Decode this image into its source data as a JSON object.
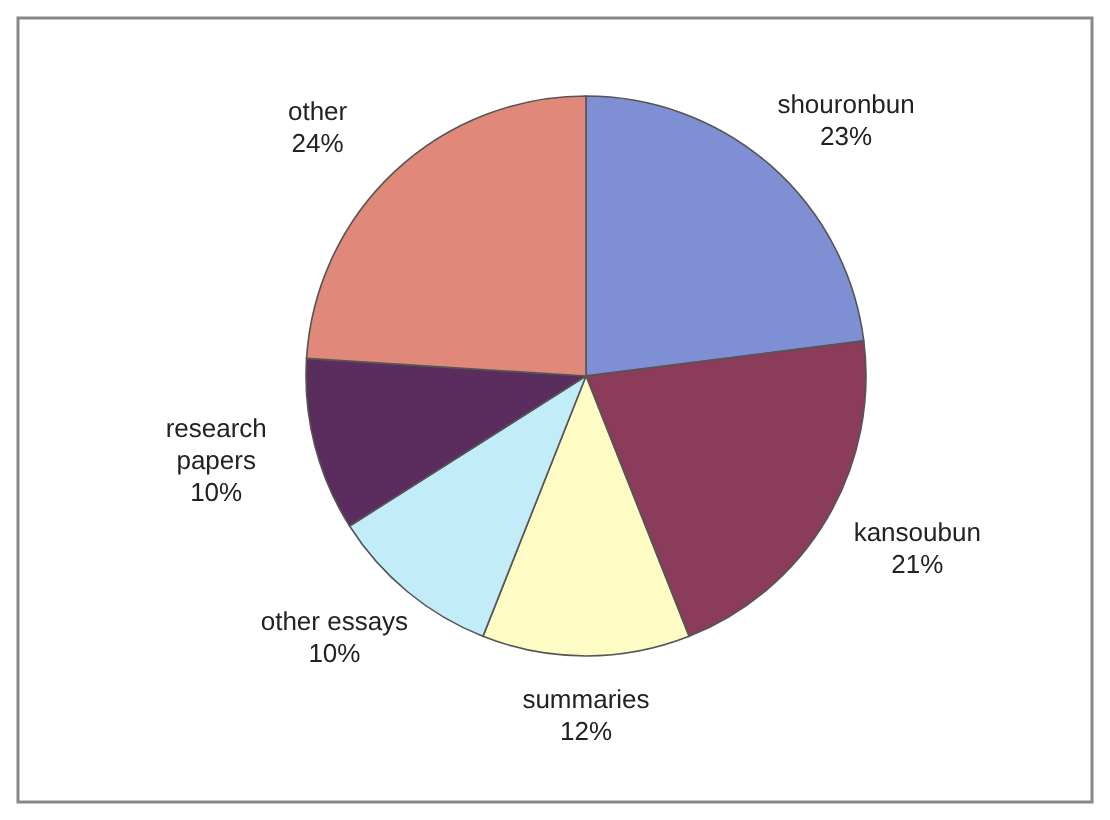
{
  "chart_data": {
    "type": "pie",
    "categories": [
      "shouronbun",
      "kansoubun",
      "summaries",
      "other essays",
      "research papers",
      "other"
    ],
    "values": [
      23,
      21,
      12,
      10,
      10,
      24
    ],
    "value_labels": [
      "23%",
      "21%",
      "12%",
      "10%",
      "10%",
      "24%"
    ],
    "colors": [
      "#7f8fd3",
      "#8a3c5a",
      "#fdfcc4",
      "#c3ecf9",
      "#5b2d5e",
      "#e0897a"
    ]
  }
}
